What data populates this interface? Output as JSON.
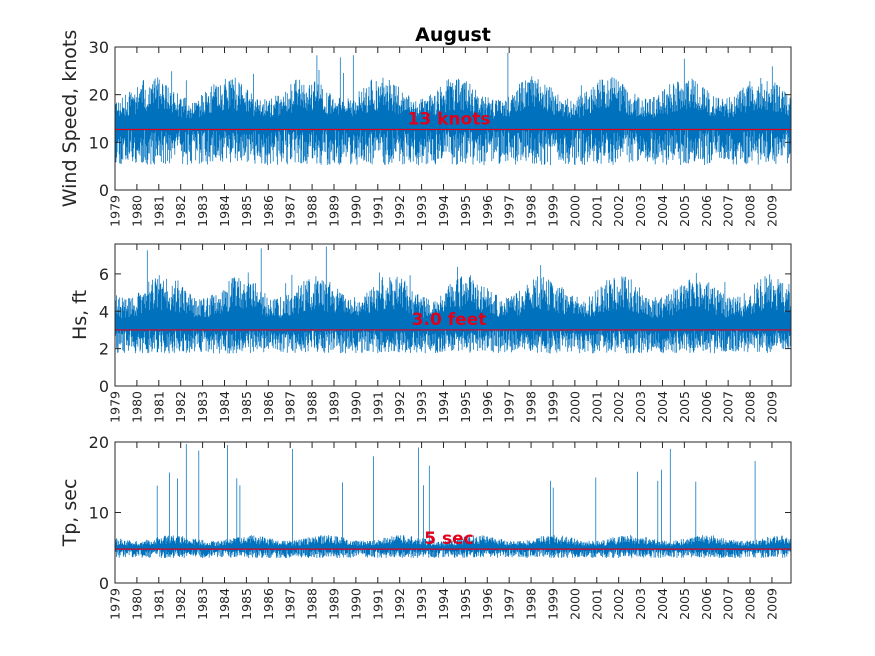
{
  "chart_data": {
    "type": "line",
    "title": "August",
    "years": [
      "1979",
      "1980",
      "1981",
      "1982",
      "1983",
      "1984",
      "1985",
      "1986",
      "1987",
      "1988",
      "1989",
      "1990",
      "1991",
      "1992",
      "1993",
      "1994",
      "1995",
      "1996",
      "1997",
      "1998",
      "1999",
      "2000",
      "2001",
      "2002",
      "2003",
      "2004",
      "2005",
      "2006",
      "2007",
      "2008",
      "2009"
    ],
    "xlim": [
      1979,
      2009.87
    ],
    "series_color": "#0072bd",
    "mean_line_color": "#e0001b",
    "subplots": [
      {
        "id": "wind",
        "ylabel": "Wind Speed, knots",
        "ylim": [
          0,
          30
        ],
        "yticks": [
          0,
          10,
          20,
          30
        ],
        "mean": 12.7,
        "mean_label": "13 knots",
        "typical_range": [
          2,
          22
        ],
        "peak_max": 29
      },
      {
        "id": "hs",
        "ylabel": "Hs, ft",
        "ylim": [
          0,
          7.6
        ],
        "yticks": [
          0,
          2,
          4,
          6
        ],
        "mean": 3.0,
        "mean_label": "3.0 feet",
        "typical_range": [
          1.2,
          5.5
        ],
        "peak_max": 7.5
      },
      {
        "id": "tp",
        "ylabel": "Tp, sec",
        "ylim": [
          0,
          20
        ],
        "yticks": [
          0,
          10,
          20
        ],
        "mean": 4.8,
        "mean_label": "5 sec",
        "typical_range": [
          3,
          6.5
        ],
        "peak_max": 19.8
      }
    ]
  }
}
